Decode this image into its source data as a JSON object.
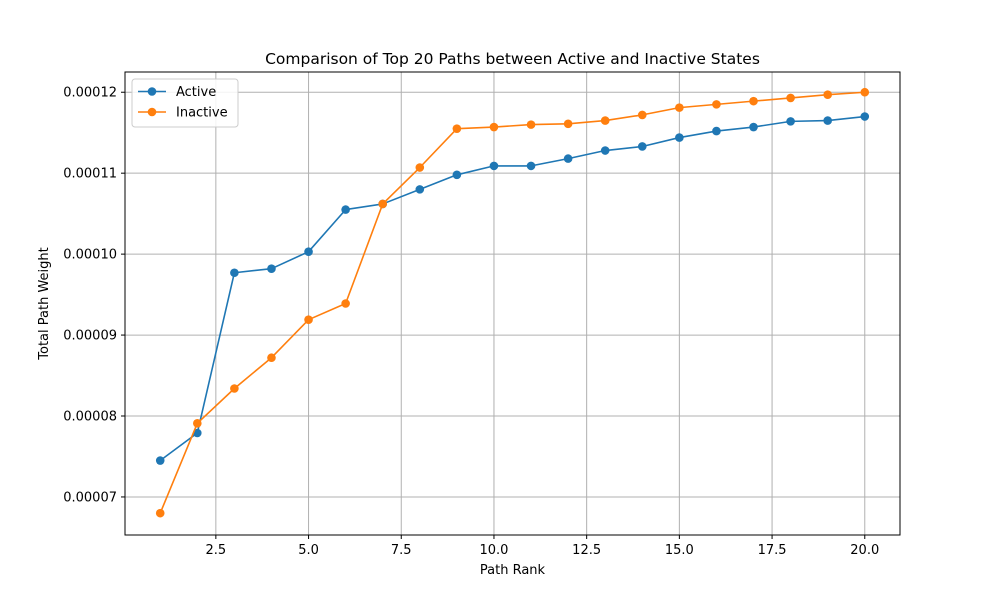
{
  "chart_data": {
    "type": "line",
    "title": "Comparison of Top 20 Paths between Active and Inactive States",
    "xlabel": "Path Rank",
    "ylabel": "Total Path Weight",
    "xlim": [
      0.05,
      20.95
    ],
    "ylim": [
      6.53e-05,
      0.0001225
    ],
    "x_ticks": [
      2.5,
      5.0,
      7.5,
      10.0,
      12.5,
      15.0,
      17.5,
      20.0
    ],
    "x_tick_labels": [
      "2.5",
      "5.0",
      "7.5",
      "10.0",
      "12.5",
      "15.0",
      "17.5",
      "20.0"
    ],
    "y_ticks": [
      7e-05,
      8e-05,
      9e-05,
      0.0001,
      0.00011,
      0.00012
    ],
    "y_tick_labels": [
      "0.00007",
      "0.00008",
      "0.00009",
      "0.00010",
      "0.00011",
      "0.00012"
    ],
    "grid": true,
    "legend_position": "upper-left",
    "x": [
      1,
      2,
      3,
      4,
      5,
      6,
      7,
      8,
      9,
      10,
      11,
      12,
      13,
      14,
      15,
      16,
      17,
      18,
      19,
      20
    ],
    "series": [
      {
        "name": "Active",
        "color": "#1f77b4",
        "values": [
          7.45e-05,
          7.79e-05,
          9.77e-05,
          9.82e-05,
          0.0001003,
          0.0001055,
          0.0001062,
          0.000108,
          0.0001098,
          0.0001109,
          0.0001109,
          0.0001118,
          0.0001128,
          0.0001133,
          0.0001144,
          0.0001152,
          0.0001157,
          0.0001164,
          0.0001165,
          0.000117
        ]
      },
      {
        "name": "Inactive",
        "color": "#ff7f0e",
        "values": [
          6.8e-05,
          7.91e-05,
          8.34e-05,
          8.72e-05,
          9.19e-05,
          9.39e-05,
          0.0001062,
          0.0001107,
          0.0001155,
          0.0001157,
          0.000116,
          0.0001161,
          0.0001165,
          0.0001172,
          0.0001181,
          0.0001185,
          0.0001189,
          0.0001193,
          0.0001197,
          0.00012
        ]
      }
    ]
  }
}
